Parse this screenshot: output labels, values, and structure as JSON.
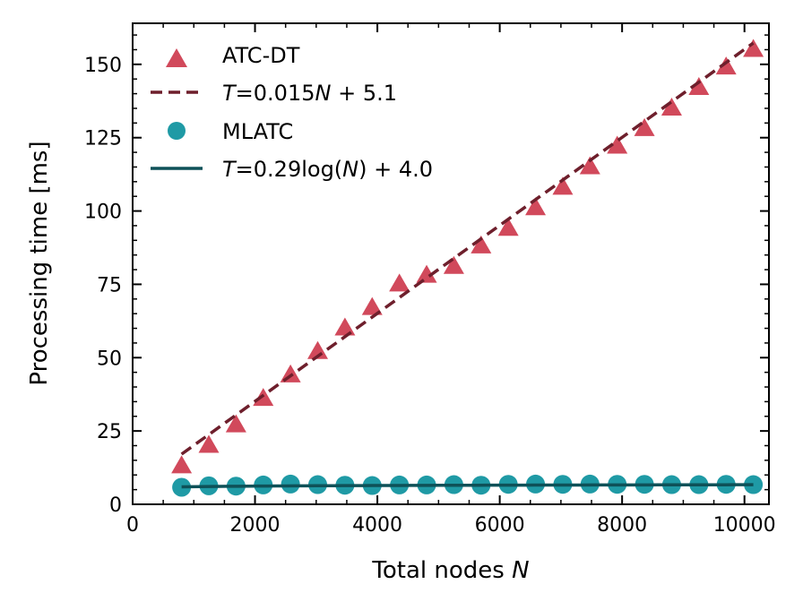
{
  "chart_data": {
    "type": "scatter",
    "title": "",
    "xlabel": "Total nodes",
    "xlabel_var": "N",
    "ylabel": "Processing time [ms]",
    "xlim": [
      0,
      10400
    ],
    "ylim": [
      0,
      164
    ],
    "xticks": [
      0,
      2000,
      4000,
      6000,
      8000,
      10000
    ],
    "yticks": [
      0,
      25,
      50,
      75,
      100,
      125,
      150
    ],
    "x_minor_step": 500,
    "y_minor_step": 5,
    "colors": {
      "atc_dt": "#d1495b",
      "atc_fit": "#6e1f2c",
      "mlatc": "#1f9aa5",
      "mlatc_fit": "#0e5158"
    },
    "series": [
      {
        "name": "ATC-DT",
        "kind": "scatter",
        "marker": "triangle",
        "x": [
          800,
          1245,
          1690,
          2135,
          2580,
          3025,
          3470,
          3915,
          4360,
          4805,
          5250,
          5695,
          6140,
          6585,
          7030,
          7475,
          7920,
          8365,
          8810,
          9255,
          9700,
          10145
        ],
        "y": [
          13,
          20,
          27,
          36,
          44,
          52,
          60,
          67,
          75,
          78,
          81,
          88,
          94,
          101,
          108,
          115,
          122,
          128,
          135,
          142,
          149,
          155
        ]
      },
      {
        "name": "MLATC",
        "kind": "scatter",
        "marker": "circle",
        "x": [
          800,
          1245,
          1690,
          2135,
          2580,
          3025,
          3470,
          3915,
          4360,
          4805,
          5250,
          5695,
          6140,
          6585,
          7030,
          7475,
          7920,
          8365,
          8810,
          9255,
          9700,
          10145
        ],
        "y": [
          5.8,
          6.3,
          6.2,
          6.6,
          6.9,
          6.7,
          6.5,
          6.4,
          6.6,
          6.6,
          6.7,
          6.5,
          6.8,
          6.9,
          6.8,
          6.9,
          6.8,
          6.8,
          6.7,
          6.7,
          6.8,
          6.7
        ]
      }
    ],
    "fits": [
      {
        "name": "T=0.015N+5.1",
        "eq_prefix": "T",
        "eq_rest": "=0.015",
        "eq_var": "N",
        "eq_suffix": " + 5.1",
        "style": "dashed",
        "slope": 0.015,
        "intercept": 5.1,
        "x_range": [
          800,
          10145
        ]
      },
      {
        "name": "T=0.29log(N)+4.0",
        "eq_prefix": "T",
        "eq_rest": "=0.29log(",
        "eq_var": "N",
        "eq_suffix": ") + 4.0",
        "style": "solid",
        "a": 0.29,
        "b": 4.0,
        "x_range": [
          800,
          10145
        ]
      }
    ],
    "legend": {
      "position": "upper-left",
      "entries": [
        "ATC-DT",
        "T=0.015N+5.1",
        "MLATC",
        "T=0.29log(N)+4.0"
      ]
    }
  }
}
